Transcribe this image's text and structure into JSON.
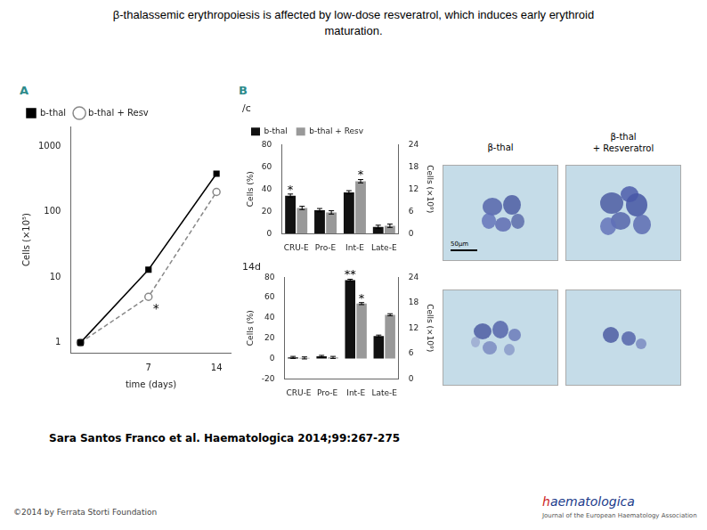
{
  "title": "β-thalassemic erythropoiesis is affected by low-dose resveratrol, which induces early erythroid\nmaturation.",
  "annotations": [
    "A",
    "B",
    "β-thal",
    "β-thal\n+ Resveratrol",
    "50μm",
    "Sara Santos Franco et al. Haematologica 2014;99:267-275",
    "©2014 by Ferrata Storti Foundation",
    "haematologica",
    "Journal of the European Haematology Association"
  ],
  "chart_data": [
    {
      "type": "line",
      "x": [
        0,
        7,
        14
      ],
      "series": [
        {
          "name": "b-thal",
          "color": "#000000",
          "marker": "square",
          "line_style": "solid",
          "values": [
            1.0,
            13,
            380
          ]
        },
        {
          "name": "b-thal + Resv",
          "color": "#888888",
          "marker": "open circle",
          "line_style": "dashed",
          "values": [
            1.0,
            5,
            200
          ]
        }
      ],
      "xlabel": "time (days)",
      "ylabel": "Cells (×10⁵)",
      "xlim": [
        -1,
        15.5
      ],
      "xticks": [
        7,
        14
      ],
      "ylim": [
        0.7,
        2000
      ],
      "yticks": [
        1,
        10,
        100,
        1000
      ],
      "log": "y",
      "grid": false,
      "legend": "upper left",
      "annotations": [
        {
          "text": "*",
          "series": "b-thal + Resv",
          "x": 7
        }
      ]
    },
    {
      "type": "bar",
      "title": "/c",
      "categories": [
        "CRU-E",
        "Pro-E",
        "Int-E",
        "Late-E"
      ],
      "series": [
        {
          "name": "b-thal",
          "color": "#111111",
          "values": [
            34,
            21,
            37,
            6
          ],
          "errors": [
            1.5,
            1.5,
            1.5,
            1.5
          ]
        },
        {
          "name": "b-thal + Resv",
          "color": "#999999",
          "values": [
            23,
            19,
            47,
            7
          ],
          "errors": [
            1.5,
            1.5,
            1.5,
            1.5
          ]
        }
      ],
      "ylabel": "Cells (%)",
      "ylim": [
        0,
        80
      ],
      "yticks": [
        0,
        20,
        40,
        60,
        80
      ],
      "y2label": "Cells (×10⁹)",
      "y2lim": [
        0,
        24
      ],
      "y2ticks": [
        0,
        6,
        12,
        18,
        24
      ],
      "grid": false,
      "legend": "upper left",
      "annotations": [
        {
          "text": "*",
          "series": "b-thal",
          "category": "CRU-E"
        },
        {
          "text": "*",
          "series": "b-thal + Resv",
          "category": "Int-E"
        }
      ]
    },
    {
      "type": "bar",
      "title": "14d",
      "categories": [
        "CRU-E",
        "Pro-E",
        "Int-E",
        "Late-E"
      ],
      "series": [
        {
          "name": "b-thal",
          "color": "#111111",
          "values": [
            1,
            2,
            77,
            22
          ],
          "errors": [
            1,
            1,
            1,
            1
          ]
        },
        {
          "name": "b-thal + Resv",
          "color": "#999999",
          "values": [
            0.5,
            1,
            54,
            43
          ],
          "errors": [
            1,
            1,
            1,
            1
          ]
        }
      ],
      "ylabel": "Cells (%)",
      "ylim": [
        -20,
        80
      ],
      "yticks": [
        -20,
        0,
        20,
        40,
        60,
        80
      ],
      "y2label": "Cells (×10⁹)",
      "y2lim": [
        0,
        24
      ],
      "y2ticks": [
        0,
        6,
        12,
        18,
        24
      ],
      "grid": false,
      "legend": false,
      "annotations": [
        {
          "text": "**",
          "series": "b-thal",
          "category": "Int-E"
        },
        {
          "text": "*",
          "series": "b-thal + Resv",
          "category": "Int-E"
        }
      ]
    }
  ]
}
